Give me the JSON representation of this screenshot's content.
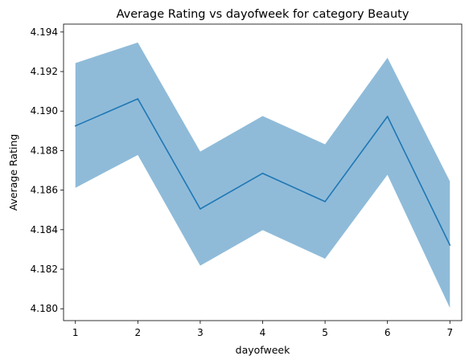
{
  "chart_data": {
    "type": "line",
    "title": "Average Rating vs dayofweek for category Beauty",
    "xlabel": "dayofweek",
    "ylabel": "Average Rating",
    "x": [
      1,
      2,
      3,
      4,
      5,
      6,
      7
    ],
    "xticks": [
      "1",
      "2",
      "3",
      "4",
      "5",
      "6",
      "7"
    ],
    "yticks": [
      "4.180",
      "4.182",
      "4.184",
      "4.186",
      "4.188",
      "4.190",
      "4.192",
      "4.194"
    ],
    "ytick_values": [
      4.18,
      4.182,
      4.184,
      4.186,
      4.188,
      4.19,
      4.192,
      4.194
    ],
    "xlim": [
      0.81,
      7.19
    ],
    "ylim": [
      4.1794,
      4.1944
    ],
    "grid": false,
    "series": [
      {
        "values": [
          4.18925,
          4.19062,
          4.18505,
          4.18685,
          4.18542,
          4.18973,
          4.18322
        ],
        "lower": [
          4.18612,
          4.18778,
          4.18218,
          4.18398,
          4.18253,
          4.18678,
          4.18004
        ],
        "upper": [
          4.19243,
          4.19347,
          4.18795,
          4.18975,
          4.18832,
          4.1927,
          4.18645
        ],
        "color": "#1f77b4",
        "band_color": "#1f77b4",
        "band_opacity": 0.5
      }
    ]
  }
}
